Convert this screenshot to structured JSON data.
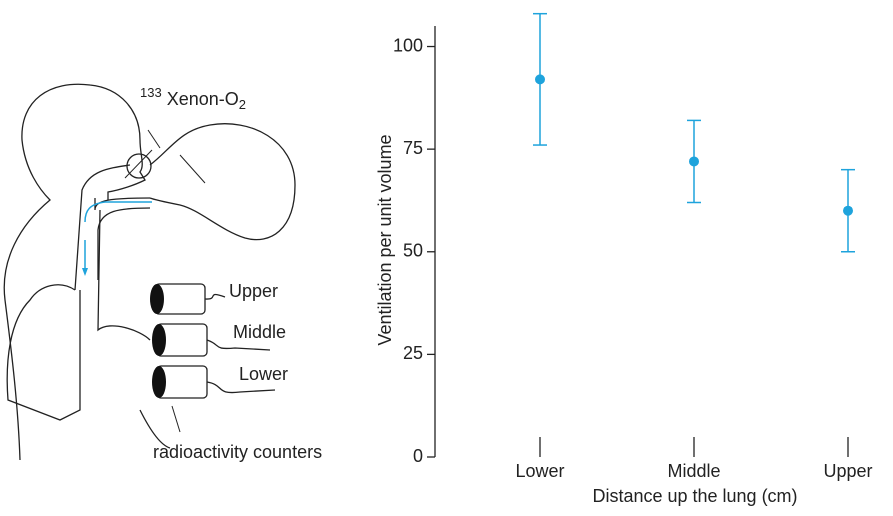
{
  "chart_data": {
    "type": "errorbar",
    "categories": [
      "Lower",
      "Middle",
      "Upper"
    ],
    "values": [
      92,
      72,
      60
    ],
    "errors": [
      16,
      10,
      10
    ],
    "color": "#1ea3dc",
    "ylim": [
      0,
      105
    ],
    "yticks": [
      0,
      25,
      50,
      75,
      100
    ],
    "y_label": "Ventilation per unit volume",
    "x_label": "Distance up the lung (cm)"
  },
  "diagram": {
    "gas_label": {
      "isotope": "133",
      "name": "Xenon-O",
      "subscript": "2"
    },
    "counters": [
      "Upper",
      "Middle",
      "Lower"
    ],
    "caption": "radioactivity counters"
  }
}
